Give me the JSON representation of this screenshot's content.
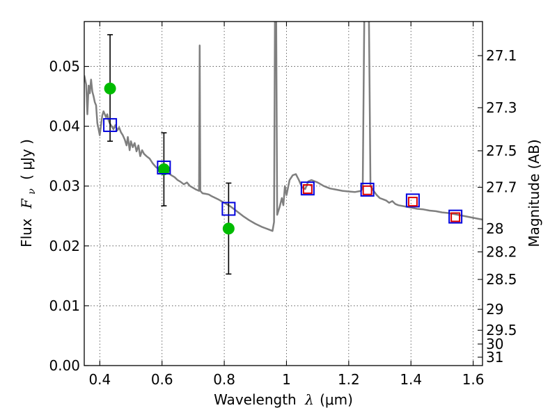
{
  "chart_data": {
    "type": "scatter",
    "xlabel_prefix": "Wavelength",
    "xlabel_symbol": "λ",
    "xlabel_unit": "(μm)",
    "ylabel_prefix": "Flux",
    "ylabel_symbol": "F",
    "ylabel_subscript": "ν",
    "ylabel_unit": "( μJy )",
    "y2label": "Magnitude (AB)",
    "xlim": [
      0.35,
      1.63
    ],
    "ylim": [
      0.0,
      0.0575
    ],
    "x_ticks": [
      0.4,
      0.6,
      0.8,
      1.0,
      1.2,
      1.4,
      1.6
    ],
    "x_tick_labels": [
      "0.4",
      "0.6",
      "0.8",
      "1",
      "1.2",
      "1.4",
      "1.6"
    ],
    "y_ticks": [
      0.0,
      0.01,
      0.02,
      0.03,
      0.04,
      0.05
    ],
    "y_tick_labels": [
      "0.00",
      "0.01",
      "0.02",
      "0.03",
      "0.04",
      "0.05"
    ],
    "y2_ticks": [
      {
        "label": "27.1",
        "flux": 0.0518
      },
      {
        "label": "27.3",
        "flux": 0.0431
      },
      {
        "label": "27.5",
        "flux": 0.0359
      },
      {
        "label": "27.7",
        "flux": 0.0298
      },
      {
        "label": "28",
        "flux": 0.0229
      },
      {
        "label": "28.2",
        "flux": 0.019
      },
      {
        "label": "28.5",
        "flux": 0.0144
      },
      {
        "label": "29",
        "flux": 0.0094
      },
      {
        "label": "29.5",
        "flux": 0.0059
      },
      {
        "label": "30",
        "flux": 0.0036
      },
      {
        "label": "31",
        "flux": 0.0014
      }
    ],
    "grid": true,
    "series": [
      {
        "name": "model-spectrum",
        "kind": "line",
        "color": "#7f7f7f",
        "points": [
          [
            0.35,
            0.0485
          ],
          [
            0.356,
            0.047
          ],
          [
            0.36,
            0.042
          ],
          [
            0.364,
            0.0468
          ],
          [
            0.368,
            0.0455
          ],
          [
            0.372,
            0.0478
          ],
          [
            0.376,
            0.0458
          ],
          [
            0.38,
            0.045
          ],
          [
            0.384,
            0.044
          ],
          [
            0.388,
            0.0435
          ],
          [
            0.392,
            0.0405
          ],
          [
            0.396,
            0.0395
          ],
          [
            0.4,
            0.0385
          ],
          [
            0.404,
            0.0402
          ],
          [
            0.408,
            0.0418
          ],
          [
            0.412,
            0.0425
          ],
          [
            0.416,
            0.042
          ],
          [
            0.42,
            0.0415
          ],
          [
            0.424,
            0.042
          ],
          [
            0.428,
            0.041
          ],
          [
            0.432,
            0.0405
          ],
          [
            0.438,
            0.04
          ],
          [
            0.444,
            0.0395
          ],
          [
            0.45,
            0.0402
          ],
          [
            0.456,
            0.0393
          ],
          [
            0.462,
            0.0398
          ],
          [
            0.468,
            0.039
          ],
          [
            0.474,
            0.0385
          ],
          [
            0.48,
            0.0378
          ],
          [
            0.486,
            0.0368
          ],
          [
            0.49,
            0.0382
          ],
          [
            0.496,
            0.036
          ],
          [
            0.5,
            0.0375
          ],
          [
            0.506,
            0.0365
          ],
          [
            0.512,
            0.0372
          ],
          [
            0.518,
            0.0358
          ],
          [
            0.524,
            0.0368
          ],
          [
            0.53,
            0.035
          ],
          [
            0.536,
            0.036
          ],
          [
            0.542,
            0.0354
          ],
          [
            0.55,
            0.035
          ],
          [
            0.56,
            0.0346
          ],
          [
            0.57,
            0.0338
          ],
          [
            0.58,
            0.0332
          ],
          [
            0.59,
            0.0328
          ],
          [
            0.6,
            0.0333
          ],
          [
            0.606,
            0.0324
          ],
          [
            0.612,
            0.033
          ],
          [
            0.62,
            0.0322
          ],
          [
            0.63,
            0.0318
          ],
          [
            0.64,
            0.0315
          ],
          [
            0.65,
            0.031
          ],
          [
            0.66,
            0.0307
          ],
          [
            0.67,
            0.0303
          ],
          [
            0.68,
            0.0306
          ],
          [
            0.69,
            0.03
          ],
          [
            0.7,
            0.0297
          ],
          [
            0.71,
            0.0294
          ],
          [
            0.719,
            0.0292
          ],
          [
            0.721,
            0.0535
          ],
          [
            0.723,
            0.0292
          ],
          [
            0.73,
            0.0288
          ],
          [
            0.74,
            0.0287
          ],
          [
            0.75,
            0.0286
          ],
          [
            0.76,
            0.0283
          ],
          [
            0.78,
            0.0278
          ],
          [
            0.8,
            0.0272
          ],
          [
            0.82,
            0.0266
          ],
          [
            0.84,
            0.0258
          ],
          [
            0.86,
            0.025
          ],
          [
            0.88,
            0.0243
          ],
          [
            0.9,
            0.0237
          ],
          [
            0.92,
            0.0232
          ],
          [
            0.94,
            0.0228
          ],
          [
            0.955,
            0.0225
          ],
          [
            0.96,
            0.024
          ],
          [
            0.963,
            0.058
          ],
          [
            0.967,
            0.058
          ],
          [
            0.97,
            0.0252
          ],
          [
            0.978,
            0.0265
          ],
          [
            0.985,
            0.028
          ],
          [
            0.99,
            0.0268
          ],
          [
            0.995,
            0.03
          ],
          [
            1.0,
            0.0285
          ],
          [
            1.01,
            0.031
          ],
          [
            1.02,
            0.0318
          ],
          [
            1.03,
            0.032
          ],
          [
            1.04,
            0.031
          ],
          [
            1.05,
            0.0298
          ],
          [
            1.06,
            0.0295
          ],
          [
            1.07,
            0.0308
          ],
          [
            1.08,
            0.031
          ],
          [
            1.1,
            0.0306
          ],
          [
            1.12,
            0.03
          ],
          [
            1.14,
            0.0296
          ],
          [
            1.16,
            0.0294
          ],
          [
            1.18,
            0.0292
          ],
          [
            1.2,
            0.0291
          ],
          [
            1.22,
            0.029
          ],
          [
            1.24,
            0.0292
          ],
          [
            1.245,
            0.03
          ],
          [
            1.25,
            0.058
          ],
          [
            1.265,
            0.058
          ],
          [
            1.27,
            0.03
          ],
          [
            1.28,
            0.0292
          ],
          [
            1.29,
            0.0285
          ],
          [
            1.3,
            0.028
          ],
          [
            1.31,
            0.0278
          ],
          [
            1.32,
            0.0276
          ],
          [
            1.33,
            0.0272
          ],
          [
            1.34,
            0.0275
          ],
          [
            1.35,
            0.027
          ],
          [
            1.36,
            0.0268
          ],
          [
            1.38,
            0.0266
          ],
          [
            1.4,
            0.0264
          ],
          [
            1.42,
            0.0262
          ],
          [
            1.44,
            0.0261
          ],
          [
            1.46,
            0.0259
          ],
          [
            1.48,
            0.0258
          ],
          [
            1.5,
            0.0256
          ],
          [
            1.52,
            0.0255
          ],
          [
            1.54,
            0.0253
          ],
          [
            1.56,
            0.0251
          ],
          [
            1.58,
            0.0249
          ],
          [
            1.6,
            0.0247
          ],
          [
            1.62,
            0.0245
          ],
          [
            1.63,
            0.0244
          ]
        ]
      },
      {
        "name": "observed-flux",
        "kind": "points-with-errorbars",
        "marker": "circle",
        "color": "#00bb00",
        "points": [
          {
            "x": 0.433,
            "y": 0.0463,
            "ylow": 0.0375,
            "yhigh": 0.0553
          },
          {
            "x": 0.606,
            "y": 0.0328,
            "ylow": 0.0267,
            "yhigh": 0.0389
          },
          {
            "x": 0.814,
            "y": 0.0229,
            "ylow": 0.0153,
            "yhigh": 0.0305
          }
        ]
      },
      {
        "name": "model-photometry",
        "kind": "points",
        "marker": "square-open",
        "color": "#0000dd",
        "points": [
          {
            "x": 0.433,
            "y": 0.0402
          },
          {
            "x": 0.606,
            "y": 0.0331
          },
          {
            "x": 0.814,
            "y": 0.0262
          },
          {
            "x": 1.068,
            "y": 0.0296
          },
          {
            "x": 1.26,
            "y": 0.0294
          },
          {
            "x": 1.406,
            "y": 0.0276
          },
          {
            "x": 1.543,
            "y": 0.0249
          }
        ]
      },
      {
        "name": "upper-limits",
        "kind": "points",
        "marker": "square-open-small",
        "color": "#dd0000",
        "points": [
          {
            "x": 1.068,
            "y": 0.0295
          },
          {
            "x": 1.26,
            "y": 0.0293
          },
          {
            "x": 1.406,
            "y": 0.0274
          },
          {
            "x": 1.543,
            "y": 0.0248
          }
        ]
      }
    ]
  }
}
